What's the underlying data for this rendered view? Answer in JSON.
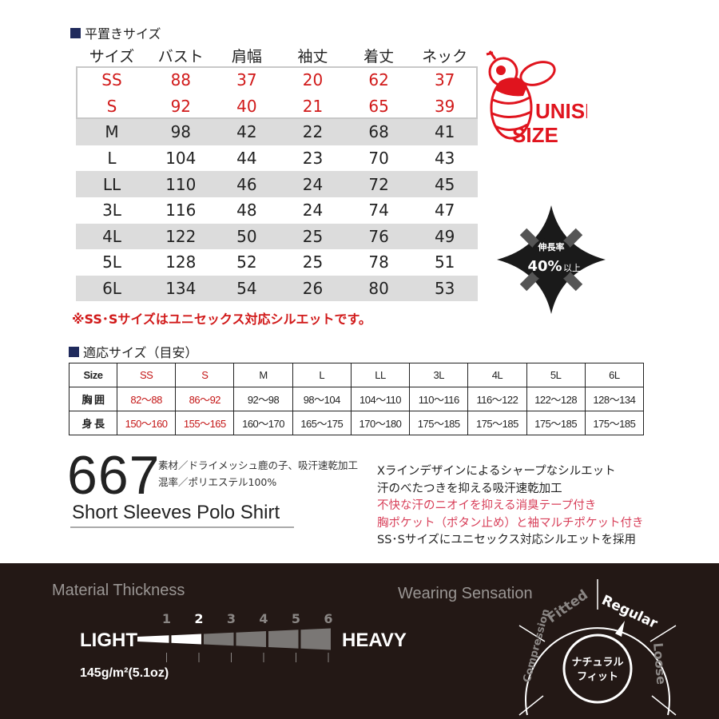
{
  "flat_size": {
    "heading": "平置きサイズ",
    "headers": [
      "サイズ",
      "バスト",
      "肩幅",
      "袖丈",
      "着丈",
      "ネック"
    ],
    "rows": [
      [
        "SS",
        "88",
        "37",
        "20",
        "62",
        "37"
      ],
      [
        "S",
        "92",
        "40",
        "21",
        "65",
        "39"
      ],
      [
        "M",
        "98",
        "42",
        "22",
        "68",
        "41"
      ],
      [
        "L",
        "104",
        "44",
        "23",
        "70",
        "43"
      ],
      [
        "LL",
        "110",
        "46",
        "24",
        "72",
        "45"
      ],
      [
        "3L",
        "116",
        "48",
        "24",
        "74",
        "47"
      ],
      [
        "4L",
        "122",
        "50",
        "25",
        "76",
        "49"
      ],
      [
        "5L",
        "128",
        "52",
        "25",
        "78",
        "51"
      ],
      [
        "6L",
        "134",
        "54",
        "26",
        "80",
        "53"
      ]
    ],
    "note": "※SS･Sサイズはユニセックス対応シルエットです。"
  },
  "unisex_badge": {
    "line1": "UNISEX",
    "line2": "SIZE",
    "color": "#e0141e"
  },
  "stretch_badge": {
    "label": "伸長率",
    "value": "40%",
    "suffix": "以上"
  },
  "fit_size": {
    "heading": "適応サイズ（目安）",
    "rows": [
      [
        "Size",
        "SS",
        "S",
        "M",
        "L",
        "LL",
        "3L",
        "4L",
        "5L",
        "6L"
      ],
      [
        "胸 囲",
        "82～88",
        "86～92",
        "92～98",
        "98～104",
        "104～110",
        "110～116",
        "116～122",
        "122～128",
        "128～134"
      ],
      [
        "身 長",
        "150～160",
        "155～165",
        "160～170",
        "165～175",
        "170～180",
        "175～185",
        "175～185",
        "175～185",
        "175～185"
      ]
    ]
  },
  "product": {
    "model": "667",
    "material1": "素材／ドライメッシュ鹿の子、吸汗速乾加工",
    "material2": "混率／ポリエステル100%",
    "name": "Short Sleeves Polo Shirt",
    "features": [
      "Xラインデザインによるシャープなシルエット",
      "汗のべたつきを抑える吸汗速乾加工",
      "不快な汗のニオイを抑える消臭テープ付き",
      "胸ポケット（ポタン止め）と袖マルチポケット付き",
      "SS･Sサイズにユニセックス対応シルエットを採用"
    ]
  },
  "thickness": {
    "heading": "Material Thickness",
    "light": "LIGHT",
    "heavy": "HEAVY",
    "levels": [
      "1",
      "2",
      "3",
      "4",
      "5",
      "6"
    ],
    "selected_level": 2,
    "weight": "145g/m²(5.1oz)"
  },
  "wearing": {
    "heading": "Wearing Sensation",
    "labels": [
      "Compression",
      "Fitted",
      "Regular",
      "Loose"
    ],
    "selected": "Regular",
    "center1": "ナチュラル",
    "center2": "フィット"
  }
}
